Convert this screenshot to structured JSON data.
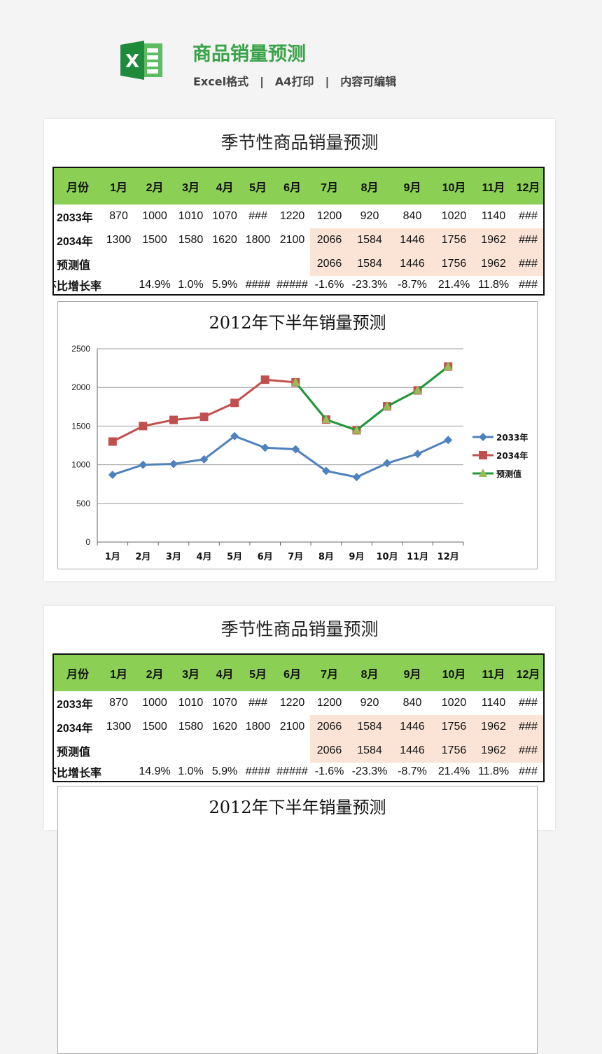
{
  "header": {
    "title": "商品销量预测",
    "sub": [
      "Excel格式",
      "|",
      "A4打印",
      "|",
      "内容可编辑"
    ],
    "icon": "excel-icon",
    "accent": "#3aa34a"
  },
  "sheet": {
    "title": "季节性商品销量预测",
    "header_row": [
      "月份",
      "1月",
      "2月",
      "3月",
      "4月",
      "5月",
      "6月",
      "7月",
      "8月",
      "9月",
      "10月",
      "11月",
      "12月"
    ],
    "rows": [
      [
        "2033年",
        "870",
        "1000",
        "1010",
        "1070",
        "###",
        "1220",
        "1200",
        "920",
        "840",
        "1020",
        "1140",
        "###"
      ],
      [
        "2034年",
        "1300",
        "1500",
        "1580",
        "1620",
        "1800",
        "2100",
        "2066",
        "1584",
        "1446",
        "1756",
        "1962",
        "###"
      ],
      [
        "预测值",
        "",
        "",
        "",
        "",
        "",
        "",
        "2066",
        "1584",
        "1446",
        "1756",
        "1962",
        "###"
      ],
      [
        "环比增长率",
        "",
        "14.9%",
        "1.0%",
        "5.9%",
        "####",
        "#####",
        "-1.6%",
        "-23.3%",
        "-8.7%",
        "21.4%",
        "11.8%",
        "###"
      ]
    ],
    "colors": {
      "header": "#8ccf55",
      "highlight": "#fbe4d6"
    }
  },
  "chart_data": {
    "type": "line",
    "title": "2012年下半年销量预测",
    "categories": [
      "1月",
      "2月",
      "3月",
      "4月",
      "5月",
      "6月",
      "7月",
      "8月",
      "9月",
      "10月",
      "11月",
      "12月"
    ],
    "ylim": [
      0,
      2500
    ],
    "yticks": [
      0,
      500,
      1000,
      1500,
      2000,
      2500
    ],
    "grid": true,
    "legend": "right",
    "series": [
      {
        "name": "2033年",
        "color": "#4f81bd",
        "marker": "diamond",
        "values": [
          870,
          1000,
          1010,
          1070,
          1370,
          1220,
          1200,
          920,
          840,
          1020,
          1140,
          1320
        ]
      },
      {
        "name": "2034年",
        "color": "#c0504d",
        "marker": "square",
        "values": [
          1300,
          1500,
          1580,
          1620,
          1800,
          2100,
          2066,
          1584,
          1446,
          1756,
          1962,
          2270
        ]
      },
      {
        "name": "预测值",
        "color": "#1e9a3a",
        "marker": "triangle",
        "values": [
          null,
          null,
          null,
          null,
          null,
          null,
          2066,
          1584,
          1446,
          1756,
          1962,
          2270
        ]
      }
    ]
  }
}
